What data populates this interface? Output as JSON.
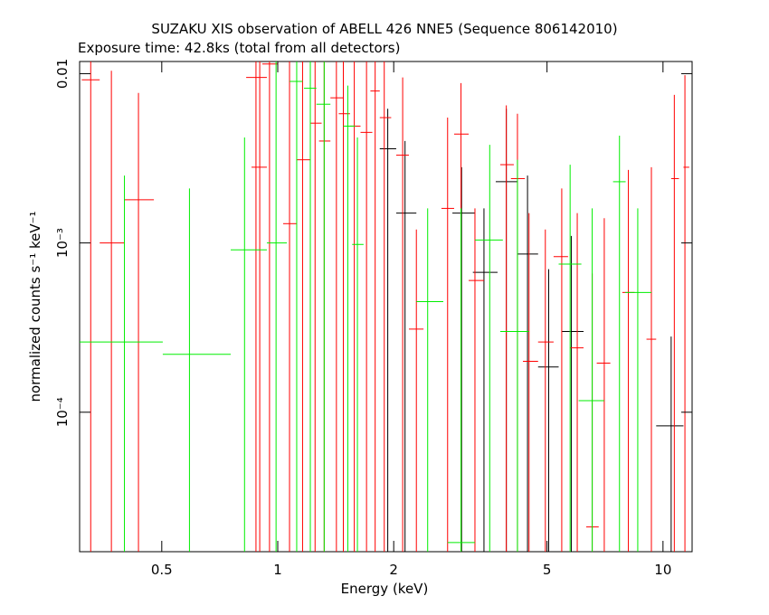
{
  "chart_data": {
    "type": "errorbar",
    "title": "SUZAKU XIS observation of ABELL 426 NNE5 (Sequence 806142010)",
    "subtitle": "Exposure time: 42.8ks (total from all detectors)",
    "x_label": "Energy (keV)",
    "y_label": "normalized counts s⁻¹ keV⁻¹",
    "x_log": true,
    "y_log": true,
    "xlim": [
      0.306,
      11.9
    ],
    "ylim": [
      1.5e-05,
      0.0118
    ],
    "xticks": [
      0.5,
      1,
      2,
      5,
      10
    ],
    "yticks": [
      {
        "value": 0.0001,
        "label": "10⁻⁴"
      },
      {
        "value": 0.001,
        "label": "10⁻³"
      },
      0.01
    ],
    "series": [
      {
        "color": "#000000",
        "x": [
          1.93,
          2.14,
          3.0,
          3.43,
          3.92,
          4.45,
          5.05,
          5.78,
          10.5
        ],
        "x_low": [
          1.84,
          2.03,
          2.84,
          3.21,
          3.68,
          4.19,
          4.74,
          5.46,
          9.6
        ],
        "x_high": [
          2.03,
          2.29,
          3.25,
          3.72,
          4.19,
          4.74,
          5.36,
          6.22,
          11.3
        ],
        "values": [
          0.0036,
          0.0015,
          0.0015,
          0.00067,
          0.0023,
          0.00086,
          0.000185,
          0.0003,
          8.3e-05
        ],
        "y_low": [
          1e-05,
          1e-05,
          1e-05,
          1e-05,
          1e-05,
          1e-05,
          1e-05,
          1e-05,
          1e-05
        ],
        "y_high": [
          0.0062,
          0.004,
          0.0028,
          0.0016,
          0.0062,
          0.0025,
          0.0007,
          0.0011,
          0.00028
        ]
      },
      {
        "color": "#ff0000",
        "x": [
          0.327,
          0.37,
          0.435,
          0.878,
          0.898,
          0.952,
          1.073,
          1.16,
          1.25,
          1.32,
          1.42,
          1.48,
          1.58,
          1.7,
          1.79,
          1.89,
          2.11,
          2.29,
          2.76,
          2.99,
          3.25,
          3.92,
          4.19,
          4.49,
          4.95,
          5.46,
          5.99,
          6.55,
          7.04,
          8.13,
          9.33,
          10.7,
          11.4
        ],
        "x_low": [
          0.31,
          0.345,
          0.399,
          0.828,
          0.855,
          0.912,
          1.033,
          1.12,
          1.215,
          1.28,
          1.37,
          1.44,
          1.54,
          1.64,
          1.74,
          1.84,
          2.03,
          2.19,
          2.66,
          2.87,
          3.13,
          3.78,
          4.03,
          4.33,
          4.74,
          5.2,
          5.74,
          6.32,
          6.73,
          7.84,
          9.06,
          10.5,
          11.3
        ],
        "x_high": [
          0.345,
          0.399,
          0.477,
          0.937,
          0.937,
          1.0,
          1.12,
          1.215,
          1.3,
          1.37,
          1.48,
          1.54,
          1.64,
          1.76,
          1.84,
          1.97,
          2.19,
          2.39,
          2.87,
          3.13,
          3.43,
          4.1,
          4.38,
          4.74,
          5.2,
          5.67,
          6.22,
          6.81,
          7.3,
          8.44,
          9.6,
          11.0,
          11.7
        ],
        "values": [
          0.0092,
          0.001,
          0.0018,
          0.0095,
          0.0028,
          0.0114,
          0.0013,
          0.0031,
          0.0051,
          0.004,
          0.0072,
          0.0058,
          0.0049,
          0.0045,
          0.0079,
          0.0055,
          0.0033,
          0.00031,
          0.0016,
          0.0044,
          0.0006,
          0.0029,
          0.0024,
          0.0002,
          0.00026,
          0.00083,
          0.00024,
          2.1e-05,
          0.000195,
          0.00051,
          0.00027,
          0.0024,
          0.0028
        ],
        "y_low": [
          1e-05,
          1e-05,
          1e-05,
          1e-05,
          1e-05,
          1e-05,
          1e-05,
          1e-05,
          1e-05,
          1e-05,
          1e-05,
          1e-05,
          1e-05,
          1e-05,
          1e-05,
          1e-05,
          1e-05,
          1e-05,
          1e-05,
          1e-05,
          1e-05,
          1e-05,
          1e-05,
          1e-05,
          1e-05,
          1e-05,
          1e-05,
          1e-05,
          1e-05,
          1e-05,
          1e-05,
          1e-05,
          1e-05
        ],
        "y_high": [
          0.02,
          0.0104,
          0.0077,
          0.02,
          0.02,
          0.02,
          0.02,
          0.02,
          0.02,
          0.02,
          0.02,
          0.02,
          0.02,
          0.02,
          0.02,
          0.02,
          0.0095,
          0.0012,
          0.0055,
          0.0088,
          0.0016,
          0.0065,
          0.0058,
          0.0015,
          0.0012,
          0.0021,
          0.0015,
          0.00066,
          0.0014,
          0.0027,
          0.0028,
          0.0075,
          0.0098
        ]
      },
      {
        "color": "#00ee00",
        "x": [
          0.4,
          0.59,
          0.82,
          0.99,
          1.12,
          1.215,
          1.32,
          1.52,
          1.61,
          2.45,
          2.99,
          3.55,
          4.19,
          5.74,
          6.55,
          7.71,
          8.6
        ],
        "x_low": [
          0.306,
          0.503,
          0.755,
          0.937,
          1.073,
          1.17,
          1.26,
          1.48,
          1.56,
          2.29,
          2.76,
          3.25,
          3.78,
          5.36,
          6.04,
          7.42,
          7.98
        ],
        "x_high": [
          0.503,
          0.755,
          0.937,
          1.056,
          1.16,
          1.26,
          1.37,
          1.59,
          1.67,
          2.69,
          3.25,
          3.84,
          4.49,
          6.14,
          7.04,
          8.0,
          9.33
        ],
        "values": [
          0.00026,
          0.00022,
          0.00091,
          0.001,
          0.009,
          0.0082,
          0.0066,
          0.0049,
          0.00098,
          0.00045,
          1.7e-05,
          0.00104,
          0.0003,
          0.00075,
          0.000117,
          0.0023,
          0.00051
        ],
        "y_low": [
          1e-05,
          1e-05,
          1e-05,
          1e-05,
          1e-05,
          1e-05,
          1e-05,
          1e-05,
          1e-05,
          1e-05,
          1e-05,
          1e-05,
          1e-05,
          1e-05,
          1e-05,
          1e-05,
          1e-05
        ],
        "y_high": [
          0.0025,
          0.0021,
          0.0042,
          0.02,
          0.02,
          0.02,
          0.02,
          0.0085,
          0.0042,
          0.0016,
          0.0016,
          0.0038,
          0.0031,
          0.0029,
          0.0016,
          0.0043,
          0.0016
        ]
      }
    ]
  }
}
